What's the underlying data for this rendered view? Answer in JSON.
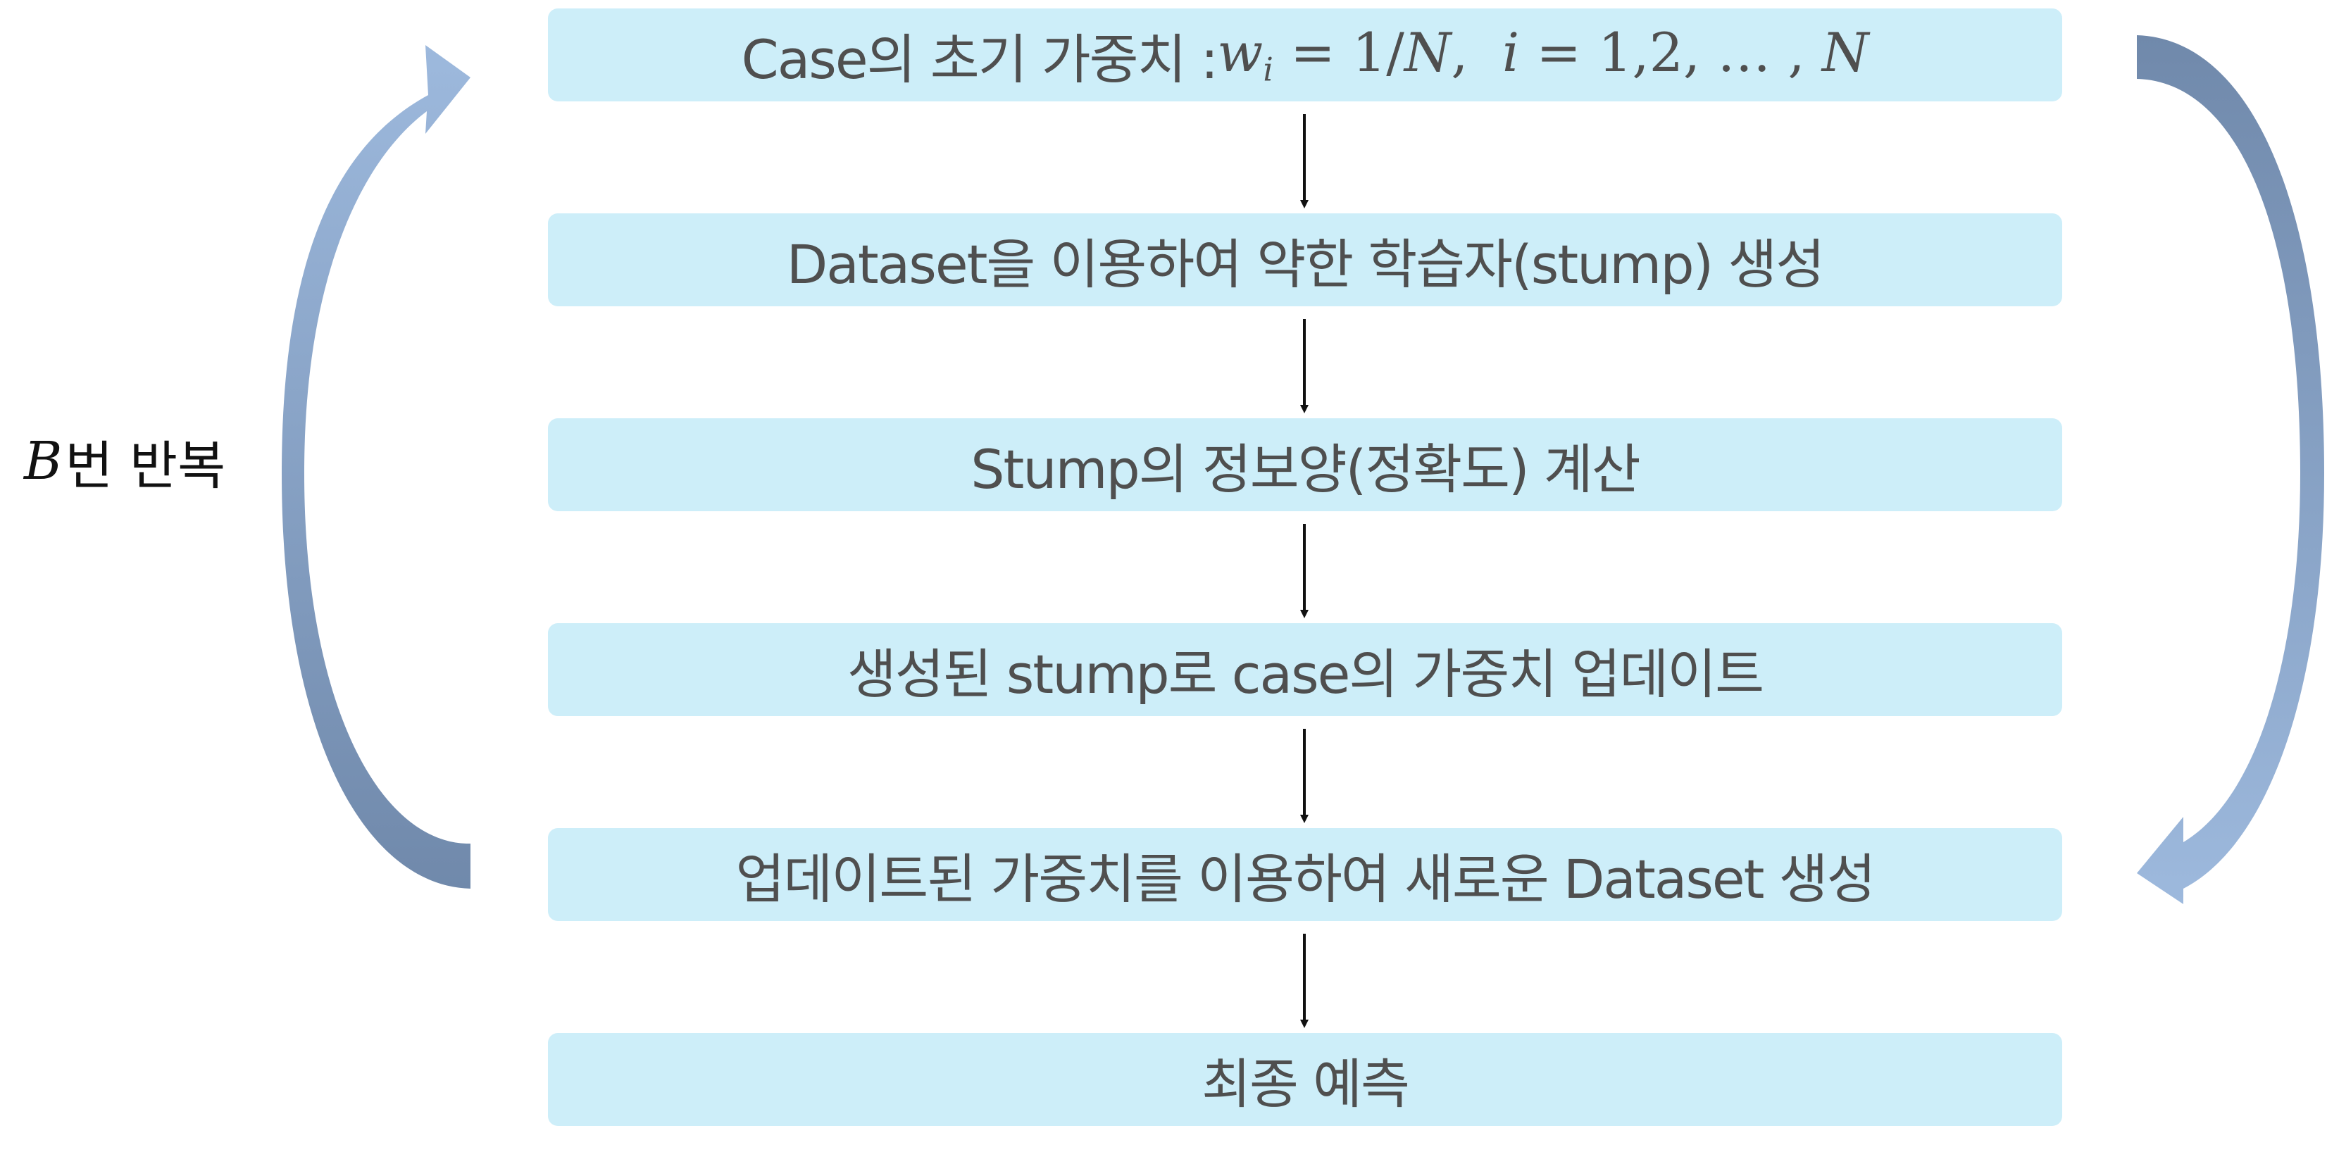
{
  "steps": [
    {
      "id": "init-weights",
      "text_prefix": "Case의 초기 가중치 : ",
      "math": {
        "w": "w",
        "sub": "i",
        "eq1": " = 1/",
        "N1": "N",
        "sep": ",  ",
        "i": "i",
        "eq2": " = 1,2, … , ",
        "N2": "N"
      }
    },
    {
      "id": "train-stump",
      "text": "Dataset을 이용하여 약한 학습자(stump) 생성"
    },
    {
      "id": "compute-info",
      "text": "Stump의 정보양(정확도) 계산"
    },
    {
      "id": "update-weights",
      "text": "생성된 stump로 case의 가중치 업데이트"
    },
    {
      "id": "new-dataset",
      "text": "업데이트된 가중치를 이용하여 새로운 Dataset 생성"
    },
    {
      "id": "final-prediction",
      "text": "최종 예측"
    }
  ],
  "loop": {
    "variable": "B",
    "label": "번 반복"
  },
  "colors": {
    "box_fill": "#cdeef9",
    "box_text": "#4f4f4f",
    "arrow": "#111111",
    "loop_arrow_light": "#9db9dd",
    "loop_arrow_dark": "#7089ab"
  }
}
